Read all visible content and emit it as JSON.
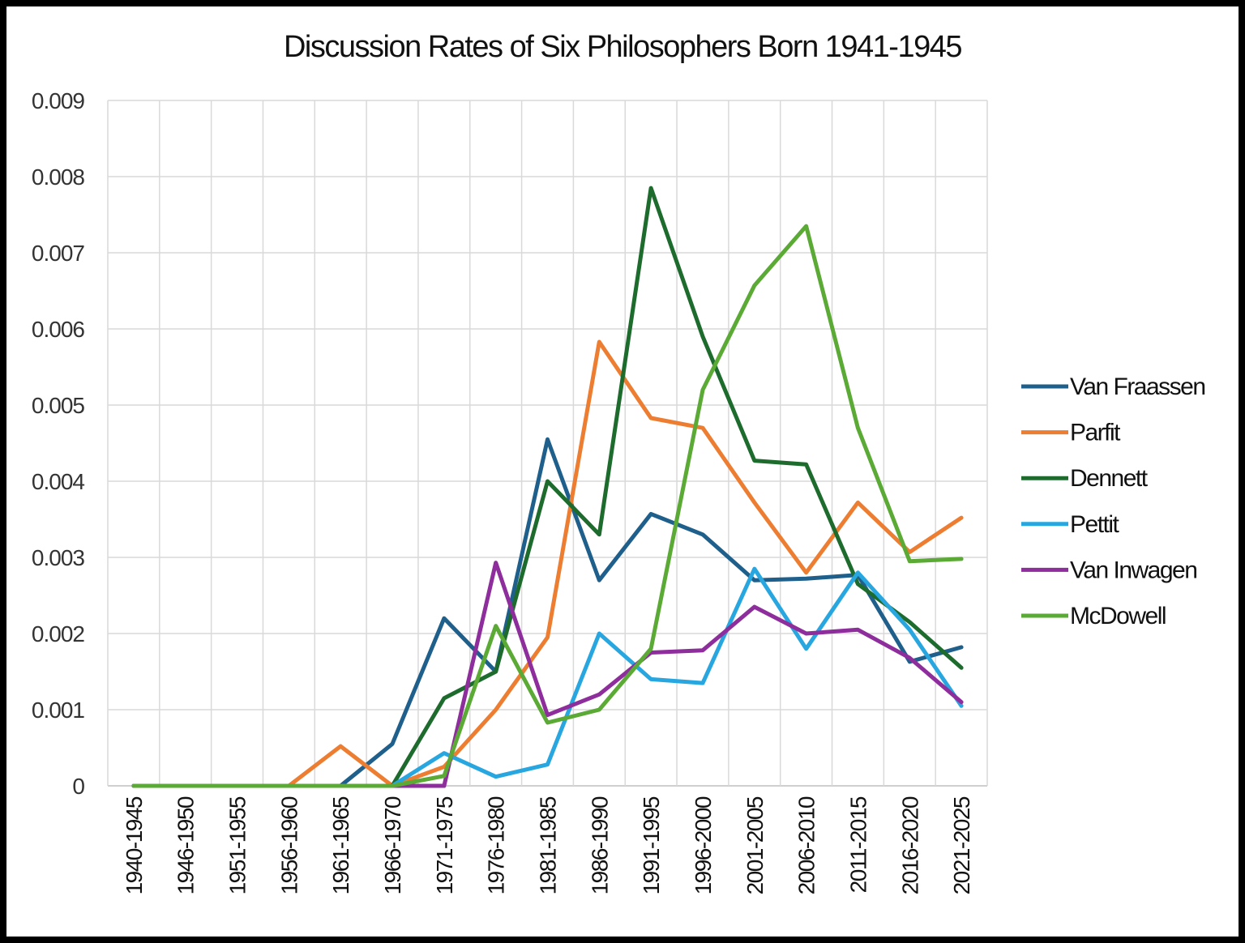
{
  "chart_data": {
    "type": "line",
    "title": "Discussion Rates of Six Philosophers Born 1941-1945",
    "xlabel": "",
    "ylabel": "",
    "categories": [
      "1940-1945",
      "1946-1950",
      "1951-1955",
      "1956-1960",
      "1961-1965",
      "1966-1970",
      "1971-1975",
      "1976-1980",
      "1981-1985",
      "1986-1990",
      "1991-1995",
      "1996-2000",
      "2001-2005",
      "2006-2010",
      "2011-2015",
      "2016-2020",
      "2021-2025"
    ],
    "ylim": [
      0,
      0.009
    ],
    "yticks": [
      "0",
      "0.001",
      "0.002",
      "0.003",
      "0.004",
      "0.005",
      "0.006",
      "0.007",
      "0.008",
      "0.009"
    ],
    "ytick_values": [
      0,
      0.001,
      0.002,
      0.003,
      0.004,
      0.005,
      0.006,
      0.007,
      0.008,
      0.009
    ],
    "grid": true,
    "legend_position": "right",
    "series": [
      {
        "name": "Van Fraassen",
        "color": "#1f5f8b",
        "values": [
          0,
          0,
          0,
          0,
          0,
          0.00055,
          0.0022,
          0.0015,
          0.00455,
          0.0027,
          0.00357,
          0.0033,
          0.0027,
          0.00272,
          0.00277,
          0.00163,
          0.00182
        ]
      },
      {
        "name": "Parfit",
        "color": "#ed7d31",
        "values": [
          0,
          0,
          0,
          0,
          0.00052,
          0,
          0.00025,
          0.001,
          0.00195,
          0.00583,
          0.00483,
          0.0047,
          0.00372,
          0.0028,
          0.00372,
          0.00307,
          0.00352
        ]
      },
      {
        "name": "Dennett",
        "color": "#1e6b2e",
        "values": [
          0,
          0,
          0,
          0,
          0,
          0,
          0.00115,
          0.0015,
          0.004,
          0.0033,
          0.00785,
          0.0059,
          0.00427,
          0.00422,
          0.00265,
          0.00215,
          0.00155
        ]
      },
      {
        "name": "Pettit",
        "color": "#27a6e0",
        "values": [
          0,
          0,
          0,
          0,
          0,
          0,
          0.00043,
          0.00012,
          0.00028,
          0.002,
          0.0014,
          0.00135,
          0.00285,
          0.0018,
          0.0028,
          0.00205,
          0.00105
        ]
      },
      {
        "name": "Van Inwagen",
        "color": "#8e2d9c",
        "values": [
          0,
          0,
          0,
          0,
          0,
          0,
          0,
          0.00293,
          0.00093,
          0.0012,
          0.00175,
          0.00178,
          0.00235,
          0.002,
          0.00205,
          0.00168,
          0.0011
        ]
      },
      {
        "name": "McDowell",
        "color": "#5aaa35",
        "values": [
          0,
          0,
          0,
          0,
          0,
          0,
          0.00013,
          0.0021,
          0.00083,
          0.001,
          0.0018,
          0.0052,
          0.00657,
          0.00735,
          0.0047,
          0.00295,
          0.00298
        ]
      }
    ]
  }
}
